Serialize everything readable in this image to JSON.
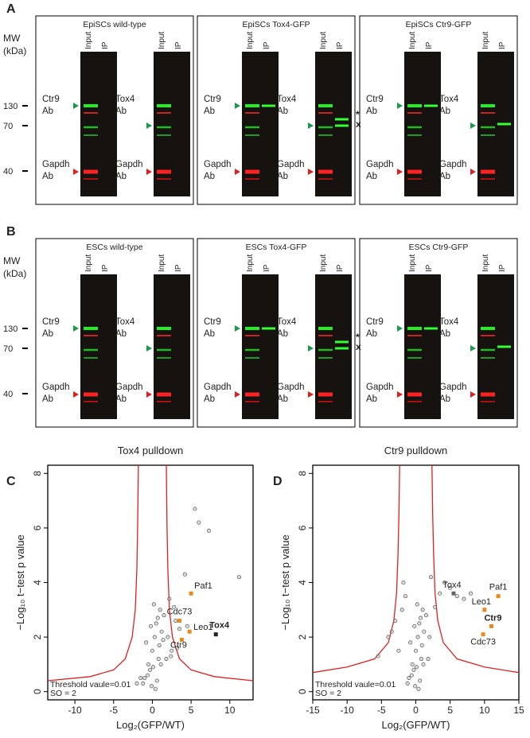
{
  "figure": {
    "panels": [
      {
        "letter": "A",
        "mw_header": [
          "MW",
          "(kDa)"
        ],
        "mw_labels": [
          130,
          70,
          40
        ],
        "boxes": [
          {
            "title": "EpiSCs wild-type",
            "blots": [
              {
                "lanes": [
                  "Input",
                  "IP"
                ],
                "labels": [
                  [
                    "Ctr9",
                    "Ab"
                  ],
                  [
                    "Gapdh",
                    "Ab"
                  ]
                ]
              },
              {
                "lanes": [
                  "Input",
                  "IP"
                ],
                "labels": [
                  [
                    "Tox4",
                    "Ab"
                  ],
                  [
                    "Gapdh",
                    "Ab"
                  ]
                ]
              }
            ]
          },
          {
            "title": "EpiSCs Tox4-GFP",
            "blots": [
              {
                "lanes": [
                  "Input",
                  "IP"
                ],
                "labels": [
                  [
                    "Ctr9",
                    "Ab"
                  ],
                  [
                    "Gapdh",
                    "Ab"
                  ]
                ]
              },
              {
                "lanes": [
                  "Input",
                  "IP"
                ],
                "labels": [
                  [
                    "Tox4",
                    "Ab"
                  ],
                  [
                    "Gapdh",
                    "Ab"
                  ]
                ],
                "marks": [
                  "*",
                  "x"
                ]
              }
            ]
          },
          {
            "title": "EpiSCs Ctr9-GFP",
            "blots": [
              {
                "lanes": [
                  "Input",
                  "IP"
                ],
                "labels": [
                  [
                    "Ctr9",
                    "Ab"
                  ],
                  [
                    "Gapdh",
                    "Ab"
                  ]
                ]
              },
              {
                "lanes": [
                  "Input",
                  "IP"
                ],
                "labels": [
                  [
                    "Tox4",
                    "Ab"
                  ],
                  [
                    "Gapdh",
                    "Ab"
                  ]
                ]
              }
            ]
          }
        ]
      },
      {
        "letter": "B",
        "mw_header": [
          "MW",
          "(kDa)"
        ],
        "mw_labels": [
          130,
          70,
          40
        ],
        "boxes": [
          {
            "title": "ESCs wild-type",
            "blots": [
              {
                "lanes": [
                  "Input",
                  "IP"
                ],
                "labels": [
                  [
                    "Ctr9",
                    "Ab"
                  ],
                  [
                    "Gapdh",
                    "Ab"
                  ]
                ]
              },
              {
                "lanes": [
                  "Input",
                  "IP"
                ],
                "labels": [
                  [
                    "Tox4",
                    "Ab"
                  ],
                  [
                    "Gapdh",
                    "Ab"
                  ]
                ]
              }
            ]
          },
          {
            "title": "ESCs Tox4-GFP",
            "blots": [
              {
                "lanes": [
                  "Input",
                  "IP"
                ],
                "labels": [
                  [
                    "Ctr9",
                    "Ab"
                  ],
                  [
                    "Gapdh",
                    "Ab"
                  ]
                ]
              },
              {
                "lanes": [
                  "Input",
                  "IP"
                ],
                "labels": [
                  [
                    "Tox4",
                    "Ab"
                  ],
                  [
                    "Gapdh",
                    "Ab"
                  ]
                ],
                "marks": [
                  "*",
                  "x"
                ]
              }
            ]
          },
          {
            "title": "ESCs Ctr9-GFP",
            "blots": [
              {
                "lanes": [
                  "Input",
                  "IP"
                ],
                "labels": [
                  [
                    "Ctr9",
                    "Ab"
                  ],
                  [
                    "Gapdh",
                    "Ab"
                  ]
                ]
              },
              {
                "lanes": [
                  "Input",
                  "IP"
                ],
                "labels": [
                  [
                    "Tox4",
                    "Ab"
                  ],
                  [
                    "Gapdh",
                    "Ab"
                  ]
                ]
              }
            ]
          }
        ]
      }
    ]
  },
  "chart_data": [
    {
      "type": "scatter",
      "letter": "C",
      "title": "Tox4 pulldown",
      "xlabel": "Log₂(GFP/WT)",
      "ylabel": "−Log₁₀ t−test p value",
      "annotations": [
        "Threshold vaule=0.01",
        "SO = 2"
      ],
      "xlim": [
        -13.5,
        13
      ],
      "ylim": [
        -0.3,
        8.3
      ],
      "xticks": [
        -10,
        -5,
        0,
        5,
        10
      ],
      "yticks": [
        0,
        2,
        4,
        6,
        8
      ],
      "x": [
        -1,
        -0.5,
        0,
        0.3,
        0.5,
        -0.3,
        0.8,
        1,
        1.2,
        -1.2,
        -0.8,
        0.2,
        0.6,
        1.5,
        2,
        2.5,
        3,
        -1.5,
        -2,
        1.8,
        2.2,
        0.4,
        -0.6,
        0.1,
        -0.2,
        0.9,
        1.4,
        2.8,
        3.5,
        4.2,
        5.5,
        6,
        7.3,
        11.2,
        4.5,
        3.2,
        -0.1,
        0.7,
        1.1,
        2.4
      ],
      "values": [
        0.5,
        1,
        1.5,
        2,
        2.5,
        0.8,
        1.2,
        3,
        2.2,
        0.3,
        1.8,
        3.2,
        0.4,
        2.8,
        2,
        1.5,
        2.6,
        0.5,
        0.3,
        1.2,
        3.4,
        0.1,
        0.6,
        0.9,
        2.4,
        1.7,
        1.9,
        3.1,
        2.3,
        4.3,
        6.7,
        6.2,
        5.9,
        4.2,
        2.4,
        1.6,
        0.2,
        2.7,
        1.0,
        1.3
      ],
      "color": "#555555",
      "highlights": [
        {
          "label": "Paf1",
          "x": 5,
          "y": 3.6,
          "color": "#e8891a"
        },
        {
          "label": "Cdc73",
          "x": 3.5,
          "y": 2.6,
          "color": "#e8891a"
        },
        {
          "label": "Leo1",
          "x": 4.8,
          "y": 2.2,
          "color": "#e8891a"
        },
        {
          "label": "Ctr9",
          "x": 3.8,
          "y": 1.9,
          "color": "#e8891a"
        },
        {
          "label": "Tox4",
          "x": 8.2,
          "y": 2.1,
          "color": "#222222"
        }
      ],
      "threshold_curve": {
        "color": "#e02020",
        "left": {
          "x": [
            -13.5,
            -8,
            -5,
            -3.5,
            -2.6,
            -2.2,
            -2.0,
            -1.9,
            -1.8
          ],
          "y": [
            0.4,
            0.55,
            0.8,
            1.2,
            2,
            3,
            4.5,
            6,
            8.3
          ]
        },
        "right": {
          "x": [
            1.8,
            1.9,
            2.0,
            2.2,
            2.6,
            3.5,
            5,
            8,
            13
          ],
          "y": [
            8.3,
            6,
            4.5,
            3,
            2,
            1.2,
            0.8,
            0.55,
            0.4
          ]
        }
      }
    },
    {
      "type": "scatter",
      "letter": "D",
      "title": "Ctr9 pulldown",
      "xlabel": "Log₂(GFP/WT)",
      "ylabel": "−Log₁₀ t−test p value",
      "annotations": [
        "Threshold vaule=0.01",
        "SO = 2"
      ],
      "xlim": [
        -15,
        15
      ],
      "ylim": [
        -0.3,
        8.3
      ],
      "xticks": [
        -15,
        -10,
        -5,
        0,
        5,
        10,
        15
      ],
      "yticks": [
        0,
        2,
        4,
        6,
        8
      ],
      "x": [
        -1,
        -0.5,
        0,
        0.3,
        0.5,
        -0.3,
        0.8,
        1,
        1.2,
        -1.2,
        -0.8,
        0.2,
        0.6,
        1.5,
        2,
        -2.5,
        -3,
        -1.5,
        -2,
        1.8,
        2.2,
        0.4,
        -0.6,
        0.1,
        -0.2,
        0.9,
        -4,
        -5.5,
        3.5,
        4.2,
        5,
        6,
        7,
        -3.5,
        2.8,
        -1.8,
        -0.1,
        0.7,
        1.1,
        8
      ],
      "values": [
        0.5,
        1,
        1.5,
        2,
        2.5,
        0.8,
        1.2,
        3,
        2.2,
        0.3,
        1.8,
        3.2,
        0.4,
        2.8,
        2,
        1.5,
        2.6,
        3.5,
        3,
        1.2,
        4.2,
        0.1,
        0.6,
        0.9,
        2.4,
        1.7,
        2,
        1.3,
        3.6,
        4,
        3.8,
        3.5,
        3.4,
        2.2,
        3.1,
        4,
        0.2,
        2.7,
        1.0,
        3.6
      ],
      "color": "#555555",
      "highlights": [
        {
          "label": "Tox4",
          "x": 5.5,
          "y": 3.6,
          "color": "#666666"
        },
        {
          "label": "Paf1",
          "x": 12,
          "y": 3.5,
          "color": "#e8891a"
        },
        {
          "label": "Leo1",
          "x": 10,
          "y": 3.0,
          "color": "#e8891a"
        },
        {
          "label": "Ctr9",
          "x": 11,
          "y": 2.4,
          "color": "#e8891a"
        },
        {
          "label": "Cdc73",
          "x": 9.8,
          "y": 2.1,
          "color": "#e8891a"
        }
      ],
      "threshold_curve": {
        "color": "#e02020",
        "left": {
          "x": [
            -15,
            -10,
            -6,
            -4,
            -3.2,
            -2.8,
            -2.6,
            -2.45,
            -2.35
          ],
          "y": [
            0.7,
            0.9,
            1.2,
            1.8,
            2.6,
            3.6,
            5,
            6.5,
            8.3
          ]
        },
        "right": {
          "x": [
            2.35,
            2.45,
            2.6,
            2.8,
            3.2,
            4,
            6,
            10,
            15
          ],
          "y": [
            8.3,
            6.5,
            5,
            3.6,
            2.6,
            1.8,
            1.2,
            0.9,
            0.7
          ]
        }
      }
    }
  ]
}
